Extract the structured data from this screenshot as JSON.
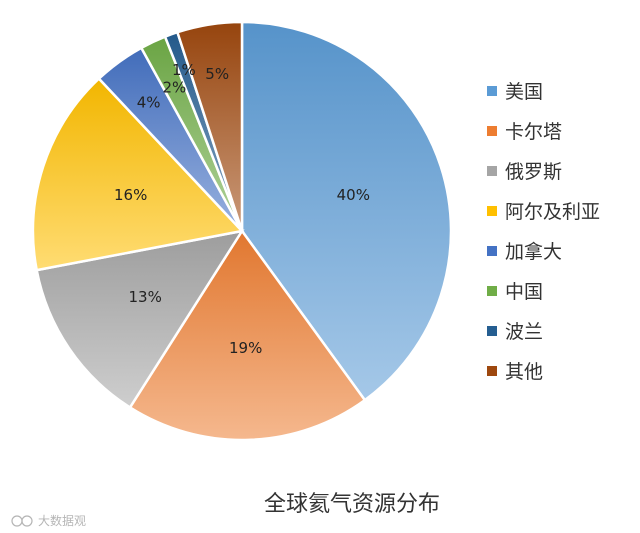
{
  "chart_data": {
    "type": "pie",
    "title": "全球氦气资源分布",
    "categories": [
      "美国",
      "卡尔塔",
      "俄罗斯",
      "阿尔及利亚",
      "加拿大",
      "中国",
      "波兰",
      "其他"
    ],
    "values": [
      40,
      19,
      13,
      16,
      4,
      2,
      1,
      5
    ],
    "data_labels": [
      "40%",
      "19%",
      "13%",
      "16%",
      "4%",
      "2%",
      "1%",
      "5%"
    ],
    "colors": [
      "#5b9bd5",
      "#ed7d31",
      "#a5a5a5",
      "#ffc000",
      "#4472c4",
      "#70ad47",
      "#255e91",
      "#9e480e"
    ],
    "legend_position": "right",
    "start_angle_deg": 0,
    "direction": "clockwise"
  },
  "watermark": "大数据观"
}
